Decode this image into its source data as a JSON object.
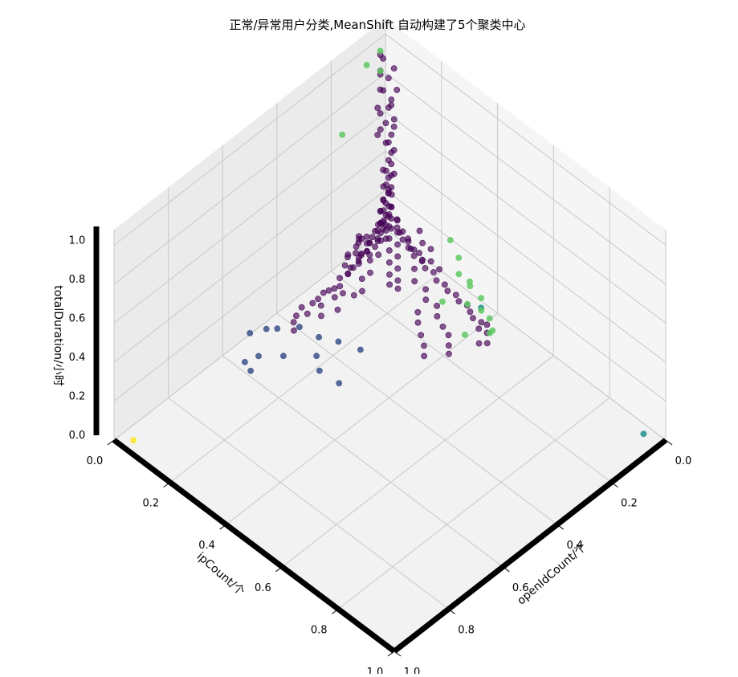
{
  "chart_data": {
    "type": "scatter3d",
    "title": "正常/异常用户分类,MeanShift 自动构建了5个聚类中心",
    "xlabel": "openIdCount/个",
    "ylabel": "ipCount/个",
    "zlabel": "totalDuration/小时",
    "xlim": [
      0,
      1
    ],
    "ylim": [
      0,
      1
    ],
    "zlim": [
      0,
      1
    ],
    "x_ticks": [
      "0.0",
      "0.2",
      "0.4",
      "0.6",
      "0.8",
      "1.0"
    ],
    "y_ticks": [
      "0.0",
      "0.2",
      "0.4",
      "0.6",
      "0.8",
      "1.0"
    ],
    "z_ticks": [
      "0.0",
      "0.2",
      "0.4",
      "0.6",
      "0.8",
      "1.0"
    ],
    "grid": true,
    "view": {
      "azimuth": 45,
      "elevation": 45
    },
    "colormap": "viridis",
    "cluster_colors": [
      "#440154",
      "#3b528b",
      "#21918c",
      "#5ec962",
      "#fde725"
    ],
    "series": [
      {
        "cluster": 0,
        "points": [
          [
            0.02,
            0.05,
            0.9
          ],
          [
            0.03,
            0.04,
            0.85
          ],
          [
            0.02,
            0.06,
            0.8
          ],
          [
            0.03,
            0.05,
            0.75
          ],
          [
            0.04,
            0.05,
            0.72
          ],
          [
            0.02,
            0.04,
            0.7
          ],
          [
            0.03,
            0.06,
            0.66
          ],
          [
            0.04,
            0.04,
            0.63
          ],
          [
            0.02,
            0.05,
            0.6
          ],
          [
            0.03,
            0.05,
            0.57
          ],
          [
            0.05,
            0.05,
            0.55
          ],
          [
            0.03,
            0.04,
            0.52
          ],
          [
            0.04,
            0.06,
            0.5
          ],
          [
            0.02,
            0.05,
            0.48
          ],
          [
            0.04,
            0.05,
            0.45
          ],
          [
            0.03,
            0.05,
            0.42
          ],
          [
            0.05,
            0.04,
            0.4
          ],
          [
            0.03,
            0.06,
            0.38
          ],
          [
            0.04,
            0.05,
            0.36
          ],
          [
            0.02,
            0.04,
            0.34
          ],
          [
            0.05,
            0.06,
            0.32
          ],
          [
            0.03,
            0.05,
            0.3
          ],
          [
            0.04,
            0.05,
            0.28
          ],
          [
            0.06,
            0.05,
            0.27
          ],
          [
            0.03,
            0.04,
            0.26
          ],
          [
            0.05,
            0.05,
            0.24
          ],
          [
            0.04,
            0.06,
            0.22
          ],
          [
            0.07,
            0.05,
            0.22
          ],
          [
            0.03,
            0.05,
            0.2
          ],
          [
            0.06,
            0.04,
            0.2
          ],
          [
            0.05,
            0.05,
            0.18
          ],
          [
            0.08,
            0.06,
            0.18
          ],
          [
            0.04,
            0.05,
            0.16
          ],
          [
            0.07,
            0.05,
            0.16
          ],
          [
            0.06,
            0.06,
            0.15
          ],
          [
            0.03,
            0.05,
            0.14
          ],
          [
            0.09,
            0.05,
            0.14
          ],
          [
            0.05,
            0.04,
            0.13
          ],
          [
            0.08,
            0.06,
            0.13
          ],
          [
            0.1,
            0.05,
            0.12
          ],
          [
            0.06,
            0.05,
            0.12
          ],
          [
            0.04,
            0.06,
            0.11
          ],
          [
            0.12,
            0.05,
            0.11
          ],
          [
            0.07,
            0.04,
            0.11
          ],
          [
            0.09,
            0.06,
            0.1
          ],
          [
            0.11,
            0.05,
            0.1
          ],
          [
            0.05,
            0.05,
            0.1
          ],
          [
            0.13,
            0.06,
            0.09
          ],
          [
            0.08,
            0.05,
            0.09
          ],
          [
            0.14,
            0.05,
            0.08
          ],
          [
            0.1,
            0.04,
            0.08
          ],
          [
            0.06,
            0.06,
            0.08
          ],
          [
            0.15,
            0.05,
            0.07
          ],
          [
            0.12,
            0.05,
            0.07
          ],
          [
            0.16,
            0.06,
            0.06
          ],
          [
            0.09,
            0.05,
            0.06
          ],
          [
            0.18,
            0.05,
            0.05
          ],
          [
            0.13,
            0.04,
            0.05
          ],
          [
            0.2,
            0.06,
            0.05
          ],
          [
            0.17,
            0.05,
            0.04
          ],
          [
            0.22,
            0.05,
            0.04
          ],
          [
            0.11,
            0.05,
            0.04
          ],
          [
            0.25,
            0.06,
            0.03
          ],
          [
            0.19,
            0.05,
            0.03
          ],
          [
            0.28,
            0.05,
            0.03
          ],
          [
            0.14,
            0.04,
            0.03
          ],
          [
            0.3,
            0.05,
            0.02
          ],
          [
            0.23,
            0.06,
            0.02
          ],
          [
            0.26,
            0.05,
            0.02
          ],
          [
            0.32,
            0.05,
            0.02
          ],
          [
            0.05,
            0.09,
            0.2
          ],
          [
            0.06,
            0.1,
            0.18
          ],
          [
            0.05,
            0.11,
            0.16
          ],
          [
            0.06,
            0.12,
            0.14
          ],
          [
            0.05,
            0.13,
            0.13
          ],
          [
            0.06,
            0.14,
            0.12
          ],
          [
            0.05,
            0.15,
            0.11
          ],
          [
            0.06,
            0.16,
            0.1
          ],
          [
            0.05,
            0.18,
            0.09
          ],
          [
            0.06,
            0.2,
            0.08
          ],
          [
            0.05,
            0.22,
            0.07
          ],
          [
            0.06,
            0.24,
            0.06
          ],
          [
            0.05,
            0.26,
            0.05
          ],
          [
            0.06,
            0.28,
            0.05
          ],
          [
            0.05,
            0.3,
            0.04
          ],
          [
            0.06,
            0.32,
            0.04
          ],
          [
            0.05,
            0.34,
            0.03
          ],
          [
            0.06,
            0.36,
            0.03
          ],
          [
            0.07,
            0.38,
            0.03
          ],
          [
            0.06,
            0.4,
            0.02
          ],
          [
            0.08,
            0.09,
            0.3
          ],
          [
            0.09,
            0.1,
            0.28
          ],
          [
            0.08,
            0.12,
            0.26
          ],
          [
            0.1,
            0.11,
            0.24
          ],
          [
            0.09,
            0.13,
            0.22
          ],
          [
            0.11,
            0.12,
            0.2
          ],
          [
            0.1,
            0.14,
            0.18
          ],
          [
            0.12,
            0.13,
            0.16
          ],
          [
            0.11,
            0.15,
            0.14
          ],
          [
            0.13,
            0.14,
            0.12
          ],
          [
            0.12,
            0.16,
            0.1
          ],
          [
            0.14,
            0.15,
            0.08
          ],
          [
            0.13,
            0.17,
            0.06
          ],
          [
            0.15,
            0.16,
            0.05
          ],
          [
            0.14,
            0.18,
            0.04
          ],
          [
            0.08,
            0.08,
            0.4
          ],
          [
            0.07,
            0.09,
            0.35
          ],
          [
            0.09,
            0.08,
            0.33
          ],
          [
            0.1,
            0.09,
            0.3
          ],
          [
            0.11,
            0.1,
            0.27
          ],
          [
            0.07,
            0.07,
            0.45
          ],
          [
            0.08,
            0.07,
            0.38
          ],
          [
            0.12,
            0.09,
            0.25
          ],
          [
            0.13,
            0.11,
            0.2
          ],
          [
            0.15,
            0.12,
            0.16
          ],
          [
            0.16,
            0.1,
            0.12
          ],
          [
            0.18,
            0.12,
            0.1
          ],
          [
            0.2,
            0.11,
            0.08
          ],
          [
            0.22,
            0.13,
            0.06
          ],
          [
            0.24,
            0.12,
            0.05
          ],
          [
            0.1,
            0.2,
            0.12
          ],
          [
            0.12,
            0.22,
            0.1
          ],
          [
            0.11,
            0.25,
            0.08
          ],
          [
            0.13,
            0.27,
            0.07
          ],
          [
            0.12,
            0.3,
            0.06
          ],
          [
            0.14,
            0.32,
            0.05
          ],
          [
            0.15,
            0.35,
            0.04
          ],
          [
            0.16,
            0.38,
            0.04
          ],
          [
            0.18,
            0.4,
            0.03
          ],
          [
            0.2,
            0.42,
            0.03
          ],
          [
            0.17,
            0.28,
            0.06
          ],
          [
            0.19,
            0.3,
            0.05
          ],
          [
            0.21,
            0.33,
            0.04
          ],
          [
            0.23,
            0.36,
            0.04
          ],
          [
            0.25,
            0.38,
            0.03
          ],
          [
            0.05,
            0.03,
            0.98
          ],
          [
            0.04,
            0.03,
            0.95
          ],
          [
            0.06,
            0.04,
            0.92
          ],
          [
            0.05,
            0.03,
            0.88
          ],
          [
            0.06,
            0.05,
            0.83
          ],
          [
            0.04,
            0.02,
            0.78
          ],
          [
            0.07,
            0.04,
            0.74
          ],
          [
            0.05,
            0.03,
            0.68
          ],
          [
            0.07,
            0.05,
            0.64
          ],
          [
            0.06,
            0.03,
            0.58
          ],
          [
            0.35,
            0.04,
            0.02
          ],
          [
            0.38,
            0.05,
            0.02
          ],
          [
            0.36,
            0.07,
            0.03
          ],
          [
            0.32,
            0.08,
            0.04
          ],
          [
            0.28,
            0.09,
            0.05
          ],
          [
            0.26,
            0.1,
            0.06
          ],
          [
            0.3,
            0.12,
            0.04
          ],
          [
            0.34,
            0.1,
            0.03
          ],
          [
            0.4,
            0.06,
            0.02
          ],
          [
            0.42,
            0.08,
            0.02
          ],
          [
            0.08,
            0.44,
            0.03
          ],
          [
            0.1,
            0.46,
            0.02
          ],
          [
            0.12,
            0.45,
            0.03
          ],
          [
            0.09,
            0.42,
            0.04
          ],
          [
            0.07,
            0.43,
            0.05
          ],
          [
            0.16,
            0.06,
            0.2
          ],
          [
            0.18,
            0.07,
            0.18
          ],
          [
            0.2,
            0.06,
            0.15
          ],
          [
            0.17,
            0.08,
            0.22
          ],
          [
            0.19,
            0.09,
            0.25
          ],
          [
            0.06,
            0.18,
            0.25
          ],
          [
            0.07,
            0.2,
            0.22
          ],
          [
            0.06,
            0.22,
            0.2
          ],
          [
            0.08,
            0.24,
            0.18
          ],
          [
            0.07,
            0.26,
            0.15
          ],
          [
            0.03,
            0.08,
            0.1
          ],
          [
            0.02,
            0.1,
            0.08
          ],
          [
            0.03,
            0.12,
            0.06
          ],
          [
            0.02,
            0.14,
            0.05
          ],
          [
            0.03,
            0.16,
            0.04
          ],
          [
            0.1,
            0.03,
            0.1
          ],
          [
            0.12,
            0.02,
            0.08
          ],
          [
            0.14,
            0.03,
            0.06
          ],
          [
            0.16,
            0.02,
            0.05
          ],
          [
            0.18,
            0.03,
            0.04
          ]
        ]
      },
      {
        "cluster": 1,
        "points": [
          [
            0.45,
            0.05,
            0.03
          ],
          [
            0.42,
            0.1,
            0.06
          ],
          [
            0.5,
            0.12,
            0.02
          ],
          [
            0.48,
            0.04,
            0.05
          ],
          [
            0.55,
            0.08,
            0.03
          ],
          [
            0.4,
            0.15,
            0.04
          ],
          [
            0.38,
            0.2,
            0.05
          ],
          [
            0.44,
            0.18,
            0.02
          ],
          [
            0.52,
            0.02,
            0.05
          ],
          [
            0.58,
            0.06,
            0.01
          ],
          [
            0.47,
            0.22,
            0.02
          ],
          [
            0.6,
            0.1,
            0.03
          ],
          [
            0.35,
            0.25,
            0.03
          ],
          [
            0.46,
            0.28,
            0.01
          ]
        ]
      },
      {
        "cluster": 2,
        "points": [
          [
            0.03,
            0.95,
            0.01
          ],
          [
            0.04,
            0.38,
            0.05
          ]
        ]
      },
      {
        "cluster": 3,
        "points": [
          [
            0.05,
            0.03,
            1.0
          ],
          [
            0.09,
            0.02,
            0.96
          ],
          [
            0.07,
            0.05,
            0.94
          ],
          [
            0.18,
            0.02,
            0.7
          ],
          [
            0.05,
            0.28,
            0.3
          ],
          [
            0.04,
            0.3,
            0.22
          ],
          [
            0.06,
            0.32,
            0.18
          ],
          [
            0.05,
            0.35,
            0.14
          ],
          [
            0.04,
            0.38,
            0.1
          ],
          [
            0.06,
            0.4,
            0.08
          ],
          [
            0.05,
            0.42,
            0.05
          ],
          [
            0.08,
            0.45,
            0.04
          ],
          [
            0.07,
            0.36,
            0.08
          ],
          [
            0.06,
            0.44,
            0.02
          ],
          [
            0.03,
            0.33,
            0.12
          ],
          [
            0.12,
            0.4,
            0.02
          ],
          [
            0.1,
            0.3,
            0.06
          ]
        ]
      },
      {
        "cluster": 4,
        "points": [
          [
            0.97,
            0.04,
            0.01
          ]
        ]
      }
    ]
  }
}
